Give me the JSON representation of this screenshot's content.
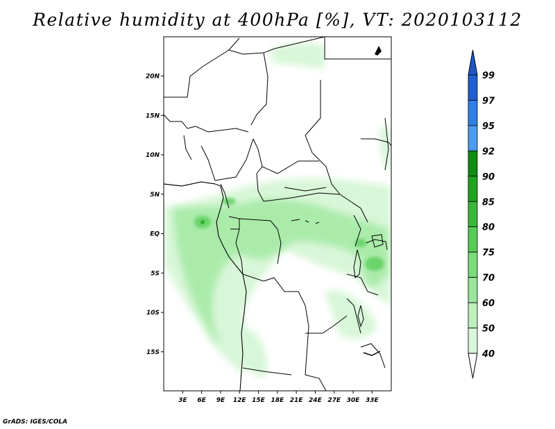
{
  "title": "Relative humidity at 400hPa [%], VT: 2020103112",
  "credit": "GrADS: IGES/COLA",
  "map": {
    "lat_ticks": [
      {
        "label": "20N",
        "lat": 20
      },
      {
        "label": "15N",
        "lat": 15
      },
      {
        "label": "10N",
        "lat": 10
      },
      {
        "label": "5N",
        "lat": 5
      },
      {
        "label": "EQ",
        "lat": 0
      },
      {
        "label": "5S",
        "lat": -5
      },
      {
        "label": "10S",
        "lat": -10
      },
      {
        "label": "15S",
        "lat": -15
      }
    ],
    "lon_ticks": [
      {
        "label": "3E",
        "lon": 3
      },
      {
        "label": "6E",
        "lon": 6
      },
      {
        "label": "9E",
        "lon": 9
      },
      {
        "label": "12E",
        "lon": 12
      },
      {
        "label": "15E",
        "lon": 15
      },
      {
        "label": "18E",
        "lon": 18
      },
      {
        "label": "21E",
        "lon": 21
      },
      {
        "label": "24E",
        "lon": 24
      },
      {
        "label": "27E",
        "lon": 27
      },
      {
        "label": "30E",
        "lon": 30
      },
      {
        "label": "33E",
        "lon": 33
      }
    ]
  },
  "colorbar": {
    "levels": [
      {
        "value": "99",
        "color": "#1f5fd0"
      },
      {
        "value": "97",
        "color": "#2f7fe6"
      },
      {
        "value": "95",
        "color": "#4a9cf0"
      },
      {
        "value": "92",
        "color": "#108c10"
      },
      {
        "value": "90",
        "color": "#1ea41e"
      },
      {
        "value": "85",
        "color": "#3ab83a"
      },
      {
        "value": "80",
        "color": "#56cc56"
      },
      {
        "value": "75",
        "color": "#7bdc7b"
      },
      {
        "value": "70",
        "color": "#9be69b"
      },
      {
        "value": "60",
        "color": "#bdf0bd"
      },
      {
        "value": "50",
        "color": "#d8f7d8"
      },
      {
        "value": "40",
        "color": "#eefcee"
      }
    ],
    "top_color": "#1e58c8"
  }
}
